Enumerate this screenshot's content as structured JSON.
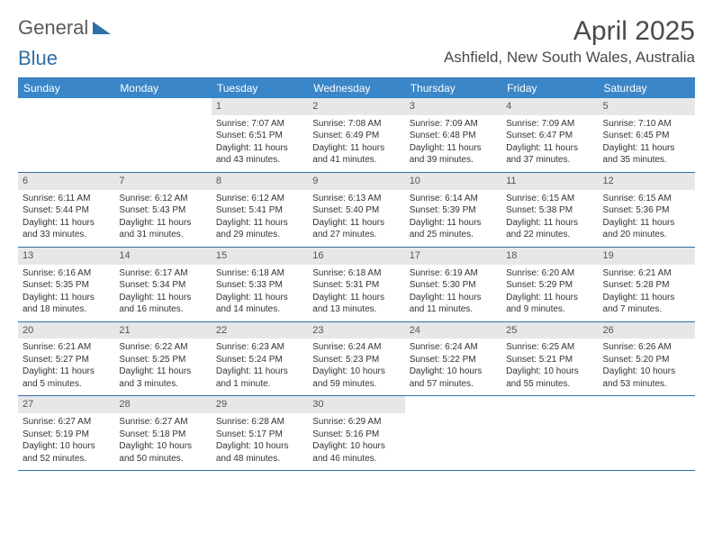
{
  "brand": {
    "part1": "General",
    "part2": "Blue"
  },
  "title": "April 2025",
  "location": "Ashfield, New South Wales, Australia",
  "colors": {
    "header_bg": "#3a86c8",
    "border": "#2f6fa8",
    "daynum_bg": "#e7e7e7",
    "text": "#333333",
    "title_text": "#4a4a4a"
  },
  "dayNames": [
    "Sunday",
    "Monday",
    "Tuesday",
    "Wednesday",
    "Thursday",
    "Friday",
    "Saturday"
  ],
  "weeks": [
    [
      null,
      null,
      {
        "n": "1",
        "sr": "7:07 AM",
        "ss": "6:51 PM",
        "dl": "11 hours and 43 minutes."
      },
      {
        "n": "2",
        "sr": "7:08 AM",
        "ss": "6:49 PM",
        "dl": "11 hours and 41 minutes."
      },
      {
        "n": "3",
        "sr": "7:09 AM",
        "ss": "6:48 PM",
        "dl": "11 hours and 39 minutes."
      },
      {
        "n": "4",
        "sr": "7:09 AM",
        "ss": "6:47 PM",
        "dl": "11 hours and 37 minutes."
      },
      {
        "n": "5",
        "sr": "7:10 AM",
        "ss": "6:45 PM",
        "dl": "11 hours and 35 minutes."
      }
    ],
    [
      {
        "n": "6",
        "sr": "6:11 AM",
        "ss": "5:44 PM",
        "dl": "11 hours and 33 minutes."
      },
      {
        "n": "7",
        "sr": "6:12 AM",
        "ss": "5:43 PM",
        "dl": "11 hours and 31 minutes."
      },
      {
        "n": "8",
        "sr": "6:12 AM",
        "ss": "5:41 PM",
        "dl": "11 hours and 29 minutes."
      },
      {
        "n": "9",
        "sr": "6:13 AM",
        "ss": "5:40 PM",
        "dl": "11 hours and 27 minutes."
      },
      {
        "n": "10",
        "sr": "6:14 AM",
        "ss": "5:39 PM",
        "dl": "11 hours and 25 minutes."
      },
      {
        "n": "11",
        "sr": "6:15 AM",
        "ss": "5:38 PM",
        "dl": "11 hours and 22 minutes."
      },
      {
        "n": "12",
        "sr": "6:15 AM",
        "ss": "5:36 PM",
        "dl": "11 hours and 20 minutes."
      }
    ],
    [
      {
        "n": "13",
        "sr": "6:16 AM",
        "ss": "5:35 PM",
        "dl": "11 hours and 18 minutes."
      },
      {
        "n": "14",
        "sr": "6:17 AM",
        "ss": "5:34 PM",
        "dl": "11 hours and 16 minutes."
      },
      {
        "n": "15",
        "sr": "6:18 AM",
        "ss": "5:33 PM",
        "dl": "11 hours and 14 minutes."
      },
      {
        "n": "16",
        "sr": "6:18 AM",
        "ss": "5:31 PM",
        "dl": "11 hours and 13 minutes."
      },
      {
        "n": "17",
        "sr": "6:19 AM",
        "ss": "5:30 PM",
        "dl": "11 hours and 11 minutes."
      },
      {
        "n": "18",
        "sr": "6:20 AM",
        "ss": "5:29 PM",
        "dl": "11 hours and 9 minutes."
      },
      {
        "n": "19",
        "sr": "6:21 AM",
        "ss": "5:28 PM",
        "dl": "11 hours and 7 minutes."
      }
    ],
    [
      {
        "n": "20",
        "sr": "6:21 AM",
        "ss": "5:27 PM",
        "dl": "11 hours and 5 minutes."
      },
      {
        "n": "21",
        "sr": "6:22 AM",
        "ss": "5:25 PM",
        "dl": "11 hours and 3 minutes."
      },
      {
        "n": "22",
        "sr": "6:23 AM",
        "ss": "5:24 PM",
        "dl": "11 hours and 1 minute."
      },
      {
        "n": "23",
        "sr": "6:24 AM",
        "ss": "5:23 PM",
        "dl": "10 hours and 59 minutes."
      },
      {
        "n": "24",
        "sr": "6:24 AM",
        "ss": "5:22 PM",
        "dl": "10 hours and 57 minutes."
      },
      {
        "n": "25",
        "sr": "6:25 AM",
        "ss": "5:21 PM",
        "dl": "10 hours and 55 minutes."
      },
      {
        "n": "26",
        "sr": "6:26 AM",
        "ss": "5:20 PM",
        "dl": "10 hours and 53 minutes."
      }
    ],
    [
      {
        "n": "27",
        "sr": "6:27 AM",
        "ss": "5:19 PM",
        "dl": "10 hours and 52 minutes."
      },
      {
        "n": "28",
        "sr": "6:27 AM",
        "ss": "5:18 PM",
        "dl": "10 hours and 50 minutes."
      },
      {
        "n": "29",
        "sr": "6:28 AM",
        "ss": "5:17 PM",
        "dl": "10 hours and 48 minutes."
      },
      {
        "n": "30",
        "sr": "6:29 AM",
        "ss": "5:16 PM",
        "dl": "10 hours and 46 minutes."
      },
      null,
      null,
      null
    ]
  ],
  "labels": {
    "sunrise": "Sunrise:",
    "sunset": "Sunset:",
    "daylight": "Daylight:"
  }
}
